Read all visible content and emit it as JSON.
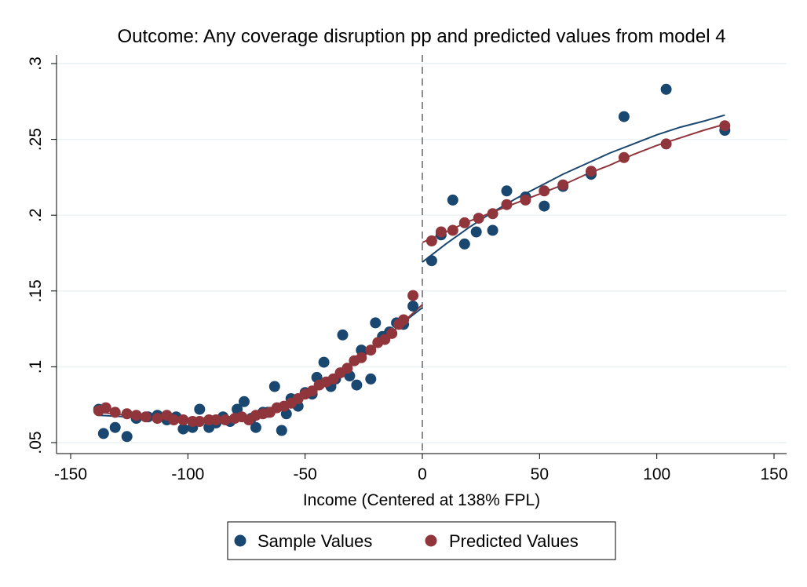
{
  "colors": {
    "sample": "#1a476f",
    "predicted": "#90353b",
    "grid": "#eaf2f3",
    "cutoff": "#8c8c8c"
  },
  "chart_data": {
    "type": "scatter",
    "title": "Outcome: Any coverage disruption pp and predicted values from model 4",
    "xlabel": "Income (Centered at 138% FPL)",
    "ylabel": "",
    "xlim": [
      -150,
      150
    ],
    "ylim": [
      0.05,
      0.3
    ],
    "x_ticks": [
      -150,
      -100,
      -50,
      0,
      50,
      100,
      150
    ],
    "x_tick_labels": [
      "-150",
      "-100",
      "-50",
      "0",
      "50",
      "100",
      "150"
    ],
    "y_ticks": [
      0.05,
      0.1,
      0.15,
      0.2,
      0.25,
      0.3
    ],
    "y_tick_labels": [
      ".05",
      ".1",
      ".15",
      ".2",
      ".25",
      ".3"
    ],
    "grid": "horizontal",
    "legend": "bottom",
    "cutoff_x": 0,
    "series": [
      {
        "name": "Sample Values",
        "kind": "points",
        "color": "#1a476f",
        "points": [
          [
            -138,
            0.072
          ],
          [
            -136,
            0.056
          ],
          [
            -131,
            0.06
          ],
          [
            -126,
            0.054
          ],
          [
            -122,
            0.066
          ],
          [
            -117,
            0.067
          ],
          [
            -113,
            0.068
          ],
          [
            -109,
            0.065
          ],
          [
            -105,
            0.067
          ],
          [
            -102,
            0.059
          ],
          [
            -98,
            0.06
          ],
          [
            -95,
            0.072
          ],
          [
            -91,
            0.06
          ],
          [
            -88,
            0.063
          ],
          [
            -85,
            0.067
          ],
          [
            -82,
            0.064
          ],
          [
            -79,
            0.072
          ],
          [
            -76,
            0.077
          ],
          [
            -73,
            0.066
          ],
          [
            -71,
            0.06
          ],
          [
            -68,
            0.07
          ],
          [
            -66,
            0.07
          ],
          [
            -63,
            0.087
          ],
          [
            -60,
            0.058
          ],
          [
            -58,
            0.069
          ],
          [
            -56,
            0.079
          ],
          [
            -53,
            0.074
          ],
          [
            -50,
            0.083
          ],
          [
            -47,
            0.082
          ],
          [
            -45,
            0.093
          ],
          [
            -42,
            0.103
          ],
          [
            -39,
            0.087
          ],
          [
            -37,
            0.092
          ],
          [
            -34,
            0.121
          ],
          [
            -31,
            0.094
          ],
          [
            -28,
            0.088
          ],
          [
            -26,
            0.111
          ],
          [
            -22,
            0.092
          ],
          [
            -20,
            0.129
          ],
          [
            -17,
            0.12
          ],
          [
            -14,
            0.123
          ],
          [
            -11,
            0.129
          ],
          [
            -8,
            0.128
          ],
          [
            -4,
            0.14
          ],
          [
            4,
            0.17
          ],
          [
            8,
            0.187
          ],
          [
            13,
            0.21
          ],
          [
            18,
            0.181
          ],
          [
            23,
            0.189
          ],
          [
            30,
            0.19
          ],
          [
            36,
            0.216
          ],
          [
            44,
            0.212
          ],
          [
            52,
            0.206
          ],
          [
            60,
            0.219
          ],
          [
            72,
            0.227
          ],
          [
            86,
            0.265
          ],
          [
            104,
            0.283
          ],
          [
            129,
            0.256
          ]
        ]
      },
      {
        "name": "Predicted Values",
        "kind": "points",
        "color": "#90353b",
        "points": [
          [
            -138,
            0.071
          ],
          [
            -135,
            0.073
          ],
          [
            -131,
            0.07
          ],
          [
            -126,
            0.069
          ],
          [
            -122,
            0.068
          ],
          [
            -118,
            0.067
          ],
          [
            -113,
            0.066
          ],
          [
            -109,
            0.068
          ],
          [
            -106,
            0.065
          ],
          [
            -102,
            0.065
          ],
          [
            -98,
            0.064
          ],
          [
            -95,
            0.064
          ],
          [
            -91,
            0.065
          ],
          [
            -88,
            0.065
          ],
          [
            -84,
            0.065
          ],
          [
            -80,
            0.066
          ],
          [
            -77,
            0.067
          ],
          [
            -74,
            0.065
          ],
          [
            -71,
            0.068
          ],
          [
            -68,
            0.069
          ],
          [
            -65,
            0.07
          ],
          [
            -62,
            0.073
          ],
          [
            -59,
            0.074
          ],
          [
            -56,
            0.076
          ],
          [
            -53,
            0.079
          ],
          [
            -50,
            0.082
          ],
          [
            -47,
            0.084
          ],
          [
            -44,
            0.088
          ],
          [
            -41,
            0.09
          ],
          [
            -38,
            0.092
          ],
          [
            -35,
            0.096
          ],
          [
            -32,
            0.099
          ],
          [
            -29,
            0.104
          ],
          [
            -26,
            0.106
          ],
          [
            -22,
            0.111
          ],
          [
            -19,
            0.116
          ],
          [
            -16,
            0.118
          ],
          [
            -13,
            0.122
          ],
          [
            -10,
            0.128
          ],
          [
            -8,
            0.131
          ],
          [
            -4,
            0.147
          ],
          [
            4,
            0.183
          ],
          [
            8,
            0.189
          ],
          [
            13,
            0.19
          ],
          [
            18,
            0.195
          ],
          [
            24,
            0.198
          ],
          [
            30,
            0.201
          ],
          [
            36,
            0.207
          ],
          [
            44,
            0.21
          ],
          [
            52,
            0.216
          ],
          [
            60,
            0.22
          ],
          [
            72,
            0.229
          ],
          [
            86,
            0.238
          ],
          [
            104,
            0.247
          ],
          [
            129,
            0.259
          ]
        ]
      },
      {
        "name": "",
        "kind": "line",
        "color": "#1a476f",
        "points": [
          [
            -138,
            0.068
          ],
          [
            -125,
            0.067
          ],
          [
            -110,
            0.065
          ],
          [
            -100,
            0.064
          ],
          [
            -90,
            0.063
          ],
          [
            -80,
            0.064
          ],
          [
            -70,
            0.067
          ],
          [
            -60,
            0.073
          ],
          [
            -50,
            0.081
          ],
          [
            -40,
            0.091
          ],
          [
            -30,
            0.102
          ],
          [
            -20,
            0.114
          ],
          [
            -10,
            0.127
          ],
          [
            0,
            0.139
          ]
        ]
      },
      {
        "name": "",
        "kind": "line",
        "color": "#1a476f",
        "points": [
          [
            0,
            0.169
          ],
          [
            10,
            0.181
          ],
          [
            20,
            0.192
          ],
          [
            30,
            0.202
          ],
          [
            40,
            0.211
          ],
          [
            50,
            0.219
          ],
          [
            60,
            0.227
          ],
          [
            70,
            0.234
          ],
          [
            80,
            0.241
          ],
          [
            90,
            0.247
          ],
          [
            100,
            0.253
          ],
          [
            110,
            0.258
          ],
          [
            120,
            0.262
          ],
          [
            129,
            0.266
          ]
        ]
      },
      {
        "name": "",
        "kind": "line",
        "color": "#90353b",
        "points": [
          [
            -138,
            0.07
          ],
          [
            -125,
            0.068
          ],
          [
            -110,
            0.066
          ],
          [
            -100,
            0.065
          ],
          [
            -90,
            0.064
          ],
          [
            -80,
            0.065
          ],
          [
            -70,
            0.068
          ],
          [
            -60,
            0.073
          ],
          [
            -50,
            0.081
          ],
          [
            -40,
            0.09
          ],
          [
            -30,
            0.101
          ],
          [
            -20,
            0.113
          ],
          [
            -10,
            0.127
          ],
          [
            0,
            0.141
          ]
        ]
      },
      {
        "name": "",
        "kind": "line",
        "color": "#90353b",
        "points": [
          [
            0,
            0.182
          ],
          [
            10,
            0.189
          ],
          [
            20,
            0.196
          ],
          [
            30,
            0.202
          ],
          [
            40,
            0.208
          ],
          [
            50,
            0.214
          ],
          [
            60,
            0.22
          ],
          [
            70,
            0.227
          ],
          [
            80,
            0.233
          ],
          [
            90,
            0.24
          ],
          [
            100,
            0.246
          ],
          [
            110,
            0.251
          ],
          [
            120,
            0.256
          ],
          [
            129,
            0.26
          ]
        ]
      }
    ]
  }
}
